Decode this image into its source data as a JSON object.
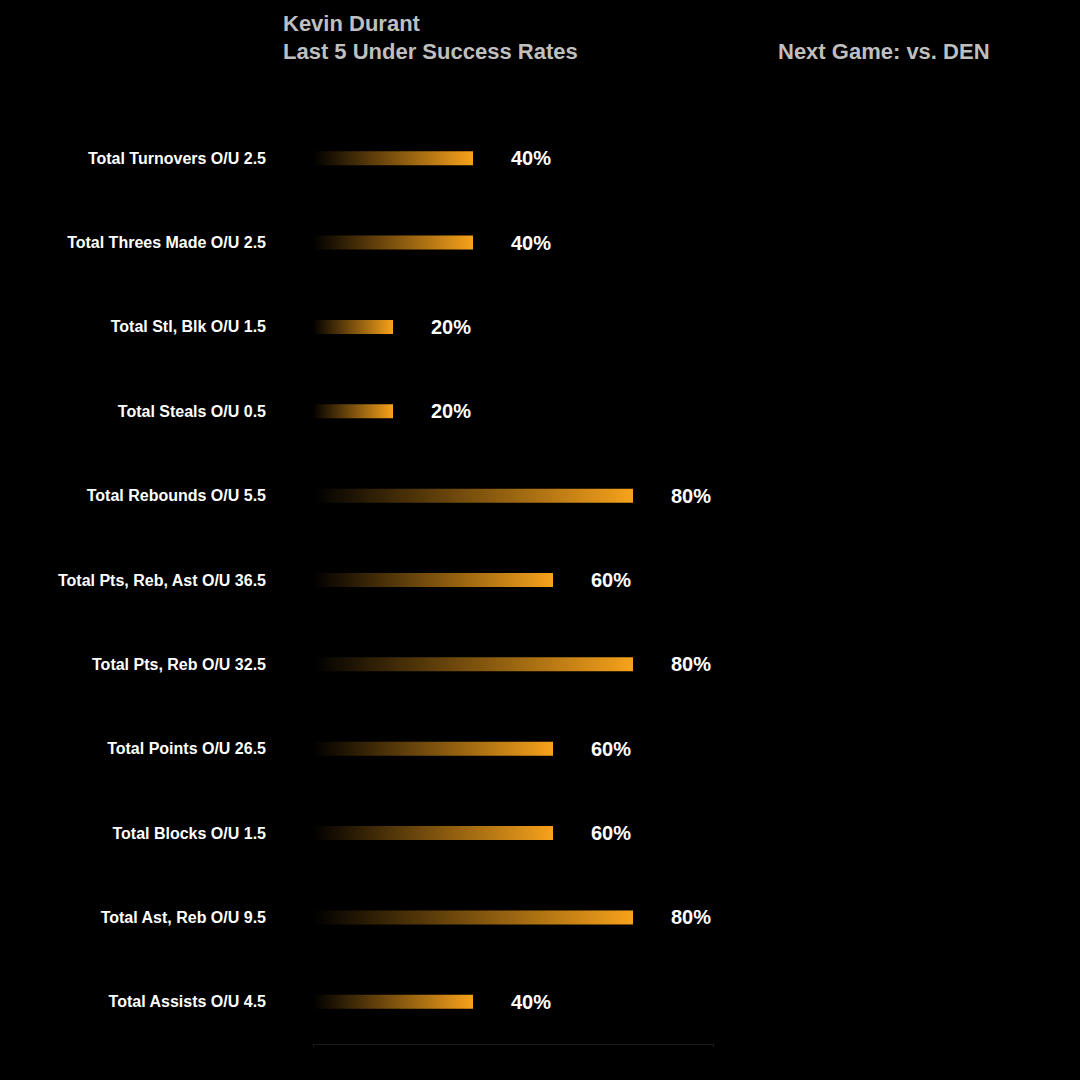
{
  "chart_data": {
    "type": "bar",
    "title": "Kevin Durant",
    "subtitle": "Last 5 Under Success Rates",
    "annotation": "Next Game: vs. DEN",
    "orientation": "horizontal",
    "categories": [
      "Total Turnovers O/U 2.5",
      "Total Threes Made O/U 2.5",
      "Total Stl, Blk O/U 1.5",
      "Total Steals O/U 0.5",
      "Total Rebounds O/U 5.5",
      "Total Pts, Reb, Ast O/U 36.5",
      "Total Pts, Reb O/U 32.5",
      "Total Points O/U 26.5",
      "Total Blocks O/U 1.5",
      "Total Ast, Reb O/U 9.5",
      "Total Assists O/U 4.5"
    ],
    "values": [
      40,
      40,
      20,
      20,
      80,
      60,
      80,
      60,
      60,
      80,
      40
    ],
    "value_labels": [
      "40%",
      "40%",
      "20%",
      "20%",
      "80%",
      "60%",
      "80%",
      "60%",
      "60%",
      "80%",
      "40%"
    ],
    "color": "#f7a21b",
    "xlim": [
      0,
      100
    ],
    "xticks": [
      0,
      100
    ],
    "grid": false,
    "data_labels": true,
    "tick_labels": "y"
  }
}
